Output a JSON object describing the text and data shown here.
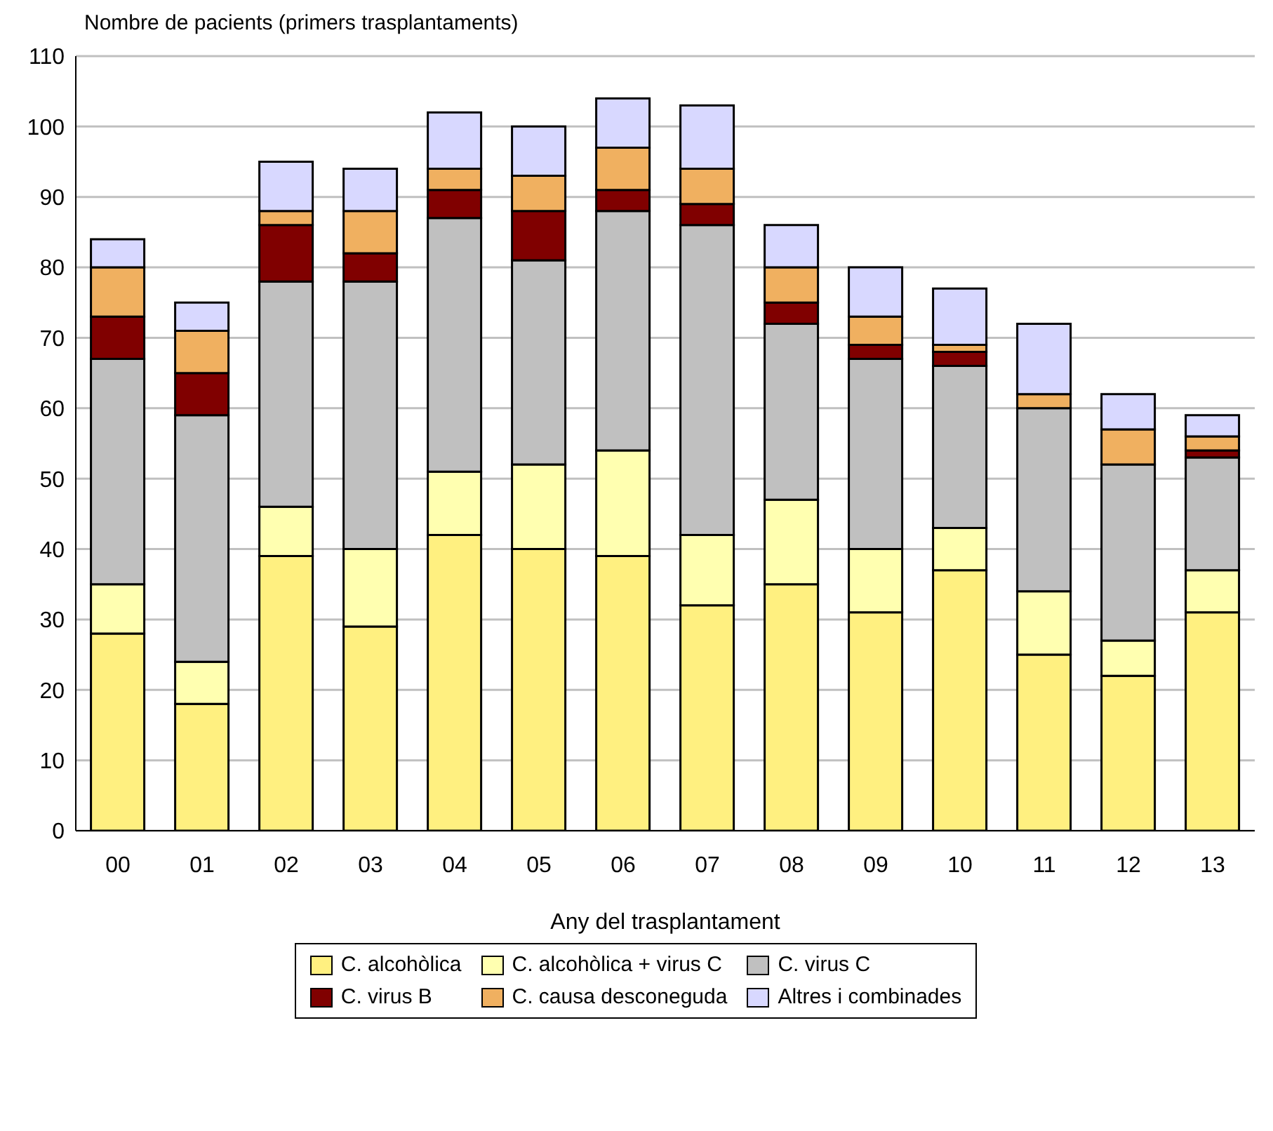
{
  "chart_data": {
    "type": "bar",
    "stacked": true,
    "ylabel": "Nombre de pacients (primers trasplantaments)",
    "xlabel": "Any del trasplantament",
    "categories": [
      "00",
      "01",
      "02",
      "03",
      "04",
      "05",
      "06",
      "07",
      "08",
      "09",
      "10",
      "11",
      "12",
      "13"
    ],
    "series": [
      {
        "name": "C. alcohòlica",
        "color": "#fff080",
        "values": [
          28,
          18,
          39,
          29,
          42,
          40,
          39,
          32,
          35,
          31,
          37,
          25,
          22,
          31
        ]
      },
      {
        "name": "C. alcohòlica + virus C",
        "color": "#ffffb0",
        "values": [
          7,
          6,
          7,
          11,
          9,
          12,
          15,
          10,
          12,
          9,
          6,
          9,
          5,
          6
        ]
      },
      {
        "name": "C. virus C",
        "color": "#c0c0c0",
        "values": [
          32,
          35,
          32,
          38,
          36,
          29,
          34,
          44,
          25,
          27,
          23,
          26,
          25,
          16
        ]
      },
      {
        "name": "C. virus B",
        "color": "#800000",
        "values": [
          6,
          6,
          8,
          4,
          4,
          7,
          3,
          3,
          3,
          2,
          2,
          0,
          0,
          1
        ]
      },
      {
        "name": "C. causa desconeguda",
        "color": "#f0b060",
        "values": [
          7,
          6,
          2,
          6,
          3,
          5,
          6,
          5,
          5,
          4,
          1,
          2,
          5,
          2
        ]
      },
      {
        "name": "Altres i combinades",
        "color": "#d8d8ff",
        "values": [
          4,
          4,
          7,
          6,
          8,
          7,
          7,
          9,
          6,
          7,
          8,
          10,
          5,
          3
        ]
      }
    ],
    "ylim": [
      0,
      110
    ],
    "yticks": [
      0,
      10,
      20,
      30,
      40,
      50,
      60,
      70,
      80,
      90,
      100,
      110
    ],
    "grid": "y",
    "legend": "bottom"
  }
}
